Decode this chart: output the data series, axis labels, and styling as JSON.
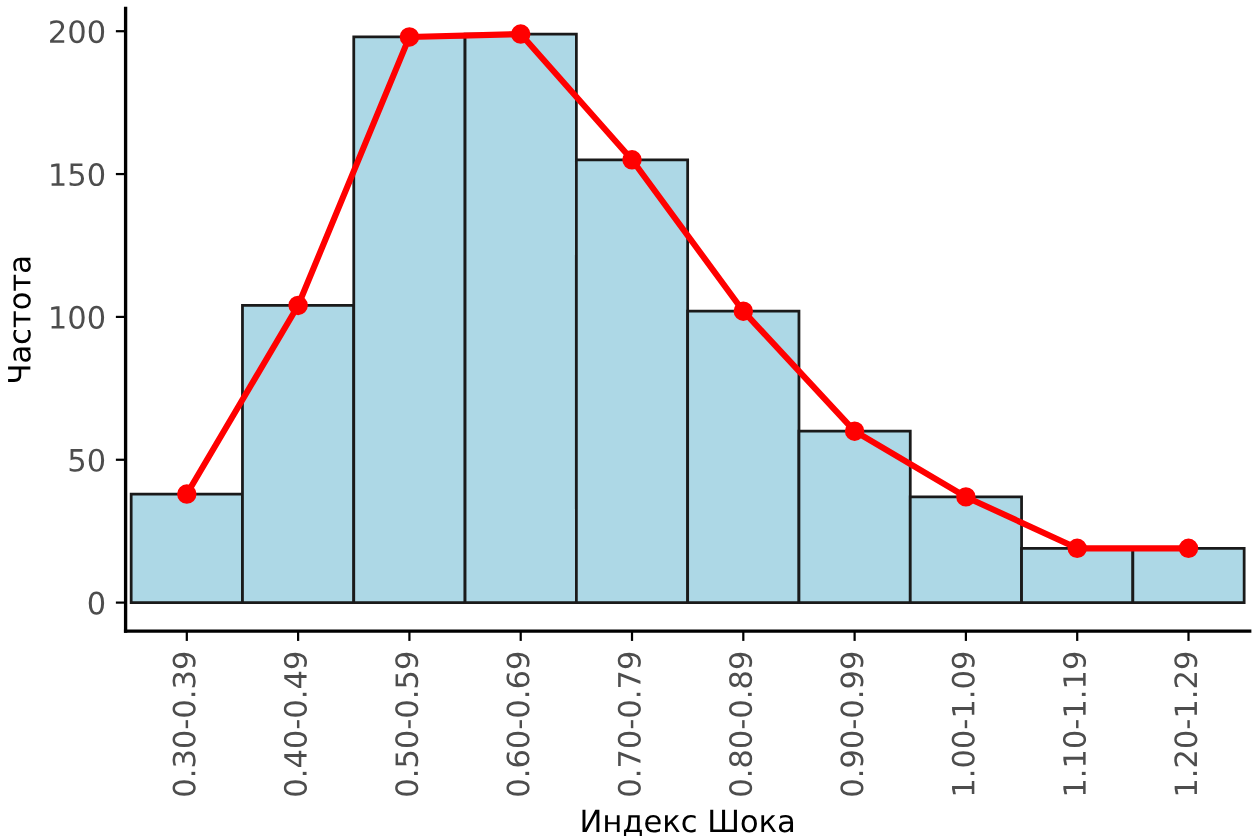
{
  "chart_data": {
    "type": "bar",
    "xlabel": "Индекс Шока",
    "ylabel": "Частота",
    "categories": [
      "0.30-0.39",
      "0.40-0.49",
      "0.50-0.59",
      "0.60-0.69",
      "0.70-0.79",
      "0.80-0.89",
      "0.90-0.99",
      "1.00-1.09",
      "1.10-1.19",
      "1.20-1.29"
    ],
    "series": [
      {
        "color": "#add8e6",
        "values": [
          38,
          104,
          198,
          199,
          155,
          102,
          60,
          37,
          19,
          19
        ]
      },
      {
        "type": "line",
        "color": "#ff0000",
        "marker": "circle",
        "line_style": "solid",
        "values": [
          38,
          104,
          198,
          199,
          155,
          102,
          60,
          37,
          19,
          19
        ]
      }
    ],
    "ylim": [
      -10,
      208
    ],
    "yticks": [
      0,
      50,
      100,
      150,
      200
    ],
    "grid": false,
    "legend": false
  }
}
